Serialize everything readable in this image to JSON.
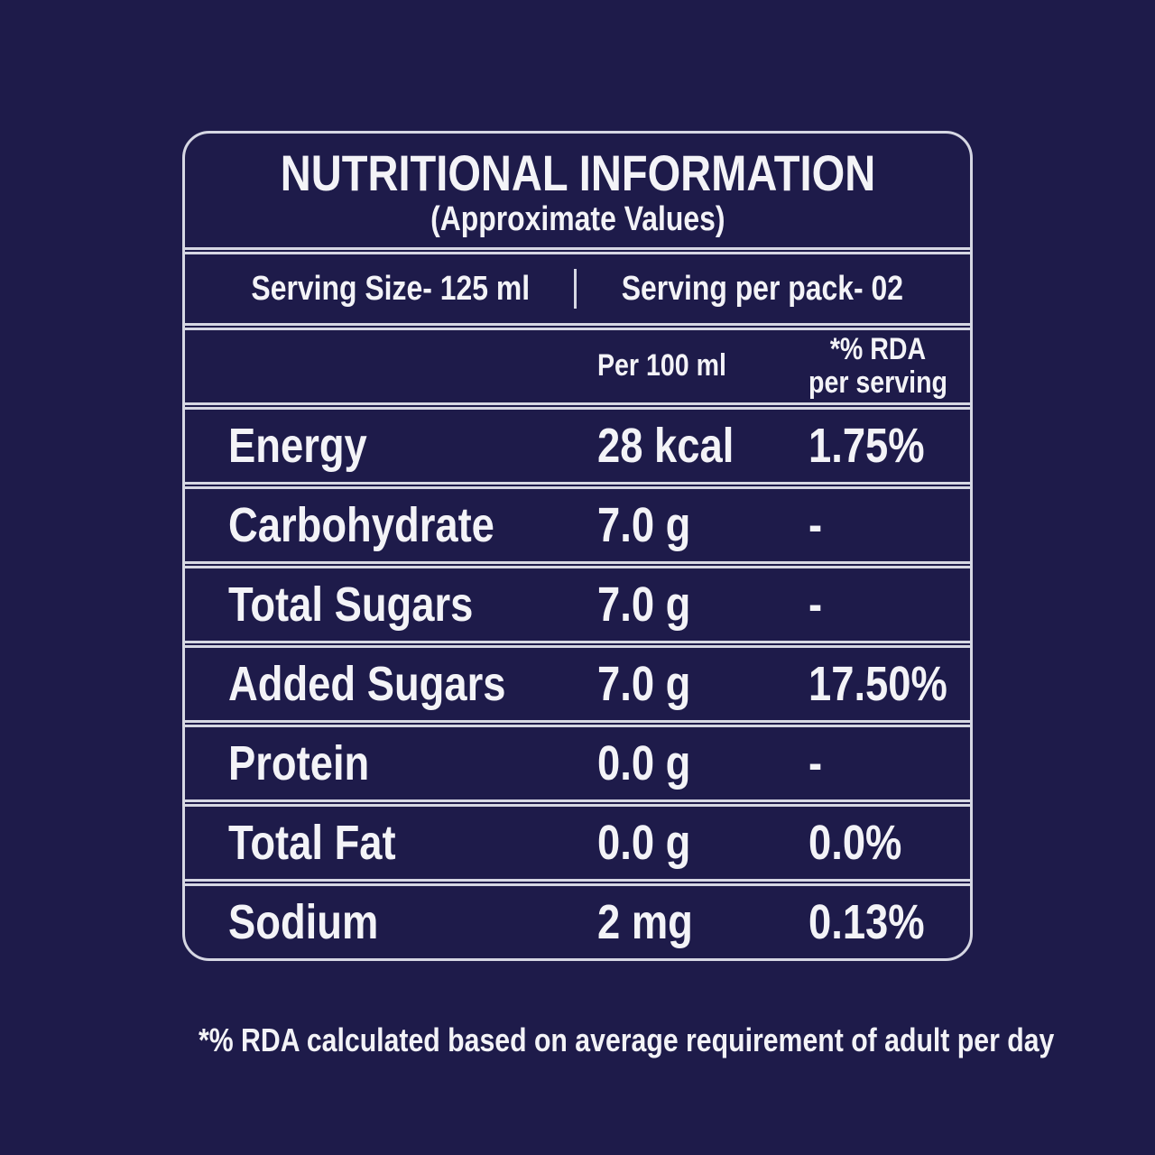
{
  "colors": {
    "background": "#1e1b4a",
    "line": "#d6d7e3",
    "text": "#f3f3f7"
  },
  "table": {
    "title": "NUTRITIONAL INFORMATION",
    "subtitle": "(Approximate Values)",
    "serving": {
      "size": "Serving Size- 125 ml",
      "per_pack": "Serving per pack- 02"
    },
    "columns": {
      "per100": "Per 100 ml",
      "rda_line1": "*% RDA",
      "rda_line2": "per serving"
    },
    "rows": [
      {
        "label": "Energy",
        "per100": "28 kcal",
        "rda": "1.75%"
      },
      {
        "label": "Carbohydrate",
        "per100": "7.0 g",
        "rda": "-"
      },
      {
        "label": "Total Sugars",
        "per100": "7.0 g",
        "rda": "-"
      },
      {
        "label": "Added Sugars",
        "per100": "7.0 g",
        "rda": "17.50%"
      },
      {
        "label": "Protein",
        "per100": "0.0 g",
        "rda": "-"
      },
      {
        "label": "Total Fat",
        "per100": "0.0 g",
        "rda": "0.0%"
      },
      {
        "label": "Sodium",
        "per100": "2 mg",
        "rda": "0.13%"
      }
    ],
    "footnote": "*% RDA calculated based on average requirement of adult per  day"
  }
}
